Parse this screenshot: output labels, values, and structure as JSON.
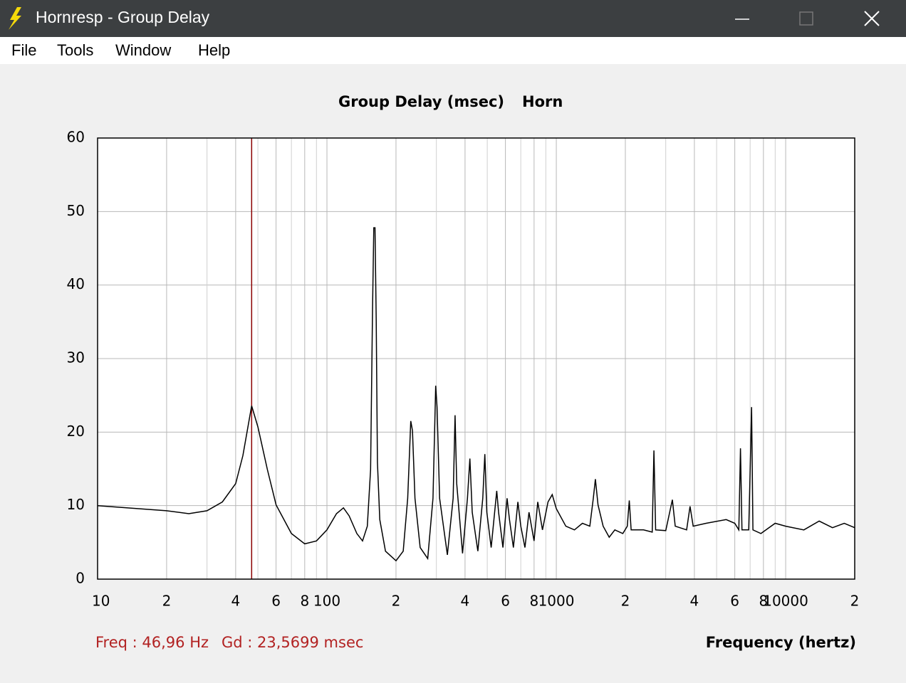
{
  "window": {
    "title": "Hornresp - Group Delay",
    "menu": [
      "File",
      "Tools",
      "Window",
      "Help"
    ]
  },
  "chart_data": {
    "type": "line",
    "title": "Group Delay (msec)",
    "xlabel": "Frequency (hertz)",
    "xscale": "log",
    "xlim": [
      10,
      20000
    ],
    "ylim": [
      0,
      60
    ],
    "grid": true,
    "xticks": [
      10,
      {
        "value": 20,
        "label": "2"
      },
      {
        "value": 40,
        "label": "4"
      },
      {
        "value": 60,
        "label": "6"
      },
      {
        "value": 80,
        "label": "8"
      },
      100,
      {
        "value": 200,
        "label": "2"
      },
      {
        "value": 400,
        "label": "4"
      },
      {
        "value": 600,
        "label": "6"
      },
      {
        "value": 800,
        "label": "8"
      },
      1000,
      {
        "value": 2000,
        "label": "2"
      },
      {
        "value": 4000,
        "label": "4"
      },
      {
        "value": 6000,
        "label": "6"
      },
      {
        "value": 8000,
        "label": "8"
      },
      10000,
      {
        "value": 20000,
        "label": "2"
      }
    ],
    "xminor_ticks": [
      30,
      50,
      70,
      90,
      300,
      500,
      700,
      900,
      3000,
      5000,
      7000,
      9000
    ],
    "yticks": [
      0,
      10,
      20,
      30,
      40,
      50,
      60
    ],
    "x": [
      10,
      20,
      25,
      30,
      35,
      40,
      43,
      46.96,
      50,
      55,
      60,
      70,
      80,
      90,
      100,
      110,
      118,
      125,
      135,
      143,
      150,
      155,
      158,
      160,
      162,
      164,
      166,
      170,
      180,
      200,
      215,
      225,
      232,
      236,
      242,
      255,
      275,
      290,
      298,
      302,
      310,
      335,
      355,
      362,
      368,
      390,
      410,
      420,
      430,
      455,
      478,
      488,
      498,
      520,
      550,
      560,
      585,
      610,
      625,
      650,
      680,
      700,
      730,
      760,
      800,
      830,
      870,
      920,
      960,
      1000,
      1100,
      1200,
      1300,
      1400,
      1450,
      1480,
      1520,
      1600,
      1700,
      1800,
      1950,
      2040,
      2080,
      2120,
      2400,
      2620,
      2665,
      2710,
      3000,
      3206,
      3300,
      3700,
      3830,
      3950,
      4500,
      5500,
      6000,
      6250,
      6350,
      6450,
      6900,
      7000,
      7100,
      7200,
      7800,
      9000,
      10000,
      12000,
      14000,
      16000,
      18000,
      20000
    ],
    "series": [
      {
        "name": "Horn",
        "color": "#000000",
        "values": [
          10.0,
          9.3,
          8.9,
          9.3,
          10.5,
          13.0,
          16.8,
          23.57,
          20.7,
          14.9,
          10.1,
          6.2,
          4.8,
          5.2,
          6.7,
          8.9,
          9.7,
          8.6,
          6.2,
          5.2,
          7.2,
          14.9,
          36.5,
          47.8,
          47.8,
          35.2,
          15.9,
          8.1,
          3.8,
          2.5,
          3.8,
          11.0,
          21.5,
          20.2,
          11.0,
          4.3,
          2.8,
          11.0,
          26.3,
          23.4,
          11.0,
          3.3,
          11.0,
          22.3,
          13.0,
          3.5,
          11.0,
          16.4,
          9.1,
          3.8,
          11.0,
          17.0,
          9.1,
          4.3,
          12.0,
          9.1,
          4.3,
          11.0,
          8.1,
          4.3,
          10.5,
          7.2,
          4.3,
          9.1,
          5.2,
          10.5,
          6.7,
          10.5,
          11.5,
          9.6,
          7.2,
          6.7,
          7.6,
          7.2,
          11.0,
          13.6,
          10.1,
          7.2,
          5.7,
          6.7,
          6.2,
          7.2,
          10.7,
          6.7,
          6.7,
          6.4,
          17.5,
          6.7,
          6.6,
          10.8,
          7.2,
          6.7,
          9.9,
          7.2,
          7.6,
          8.1,
          7.6,
          6.7,
          17.8,
          6.7,
          6.7,
          14.9,
          23.4,
          6.7,
          6.2,
          7.6,
          7.2,
          6.7,
          7.9,
          7.0,
          7.6,
          7.0
        ]
      }
    ],
    "cursor": {
      "x": 46.96,
      "color": "#8b0000"
    },
    "annotations": [
      "Freq : 46,96 Hz",
      "Gd : 23,5699 msec"
    ]
  }
}
